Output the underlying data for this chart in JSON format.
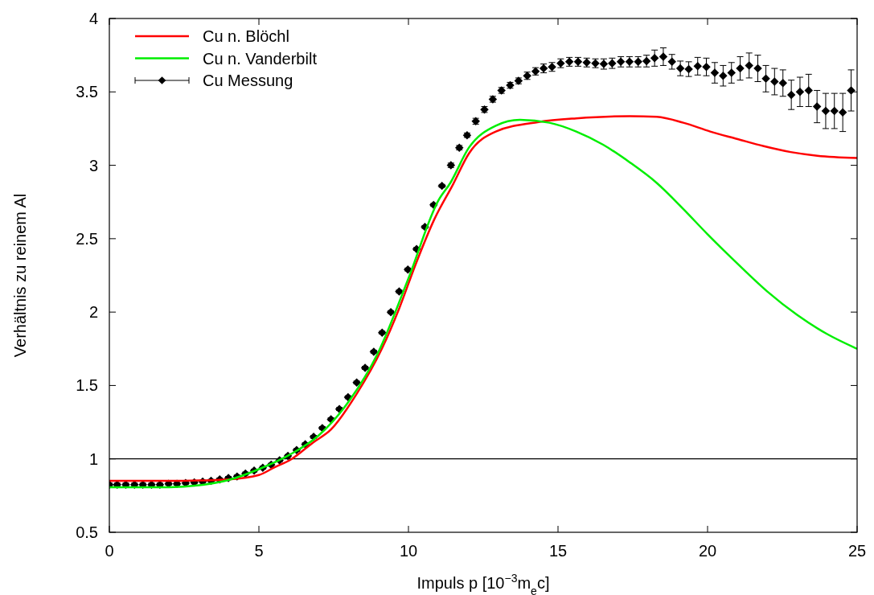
{
  "chart_data": {
    "type": "line",
    "xlabel": "Impuls p [10$^{−3}$m$_{e}$c]",
    "ylabel": "Verhältnis zu reinem Al",
    "xlim": [
      0,
      25
    ],
    "xticks": [
      0,
      5,
      10,
      15,
      20,
      25
    ],
    "ylim": [
      0.5,
      4
    ],
    "yticks": [
      0.5,
      1,
      1.5,
      2,
      2.5,
      3,
      3.5,
      4
    ],
    "grid": false,
    "legend": "top left",
    "ref_lines": [
      {
        "axis": "y",
        "value": 1,
        "color": "#000000"
      }
    ],
    "series": [
      {
        "name": "Cu n. Blöchl",
        "type": "line",
        "color": "#ff0000",
        "marker": "none",
        "x": [
          0,
          2,
          3,
          4,
          5,
          5.5,
          6.1,
          6.8,
          7.41,
          8.26,
          9.11,
          9.7,
          10.23,
          10.86,
          11.49,
          12.02,
          12.92,
          14.35,
          15.61,
          17.4,
          18.3,
          19.19,
          20.09,
          20.98,
          21.88,
          22.78,
          23.67,
          25
        ],
        "values": [
          0.85,
          0.85,
          0.853,
          0.86,
          0.89,
          0.94,
          1.0,
          1.11,
          1.2,
          1.44,
          1.75,
          2.03,
          2.32,
          2.63,
          2.87,
          3.08,
          3.23,
          3.295,
          3.32,
          3.335,
          3.33,
          3.29,
          3.23,
          3.18,
          3.13,
          3.09,
          3.065,
          3.05
        ]
      },
      {
        "name": "Cu n. Vanderbilt",
        "type": "line",
        "color": "#00ee00",
        "marker": "none",
        "x": [
          0,
          2,
          3,
          4,
          5,
          6,
          7,
          8,
          9,
          10,
          11,
          11.4,
          12.02,
          12.92,
          13.73,
          14.71,
          15.61,
          16.51,
          17.4,
          18.3,
          19.2,
          20,
          21,
          22,
          23,
          24,
          25
        ],
        "values": [
          0.807,
          0.807,
          0.82,
          0.857,
          0.93,
          1.025,
          1.16,
          1.39,
          1.73,
          2.23,
          2.76,
          2.88,
          3.12,
          3.27,
          3.31,
          3.29,
          3.23,
          3.14,
          3.02,
          2.88,
          2.7,
          2.53,
          2.33,
          2.14,
          1.98,
          1.85,
          1.75
        ]
      },
      {
        "name": "Cu Messung",
        "type": "scatter",
        "color": "#000000",
        "marker": "diamond",
        "x": [
          0,
          0.26,
          0.55,
          0.84,
          1.12,
          1.41,
          1.69,
          1.98,
          2.26,
          2.55,
          2.84,
          3.12,
          3.4,
          3.69,
          3.98,
          4.27,
          4.55,
          4.84,
          5.13,
          5.41,
          5.69,
          5.97,
          6.26,
          6.55,
          6.83,
          7.12,
          7.41,
          7.69,
          7.98,
          8.27,
          8.55,
          8.84,
          9.12,
          9.41,
          9.69,
          9.98,
          10.27,
          10.55,
          10.84,
          11.12,
          11.42,
          11.7,
          11.96,
          12.25,
          12.54,
          12.82,
          13.11,
          13.4,
          13.68,
          13.97,
          14.25,
          14.52,
          14.8,
          15.09,
          15.38,
          15.67,
          15.96,
          16.25,
          16.53,
          16.81,
          17.1,
          17.39,
          17.68,
          17.96,
          18.23,
          18.52,
          18.81,
          19.09,
          19.37,
          19.67,
          19.96,
          20.24,
          20.52,
          20.8,
          21.09,
          21.39,
          21.68,
          21.95,
          22.24,
          22.52,
          22.8,
          23.09,
          23.38,
          23.66,
          23.95,
          24.24,
          24.52,
          24.8
        ],
        "values": [
          0.825,
          0.825,
          0.825,
          0.825,
          0.825,
          0.825,
          0.825,
          0.83,
          0.83,
          0.835,
          0.84,
          0.845,
          0.85,
          0.86,
          0.87,
          0.88,
          0.9,
          0.92,
          0.94,
          0.96,
          0.99,
          1.02,
          1.06,
          1.1,
          1.15,
          1.21,
          1.27,
          1.34,
          1.42,
          1.52,
          1.62,
          1.73,
          1.86,
          2.0,
          2.14,
          2.29,
          2.43,
          2.58,
          2.73,
          2.86,
          3.0,
          3.12,
          3.205,
          3.3,
          3.38,
          3.45,
          3.51,
          3.545,
          3.575,
          3.61,
          3.64,
          3.66,
          3.67,
          3.695,
          3.705,
          3.705,
          3.7,
          3.695,
          3.69,
          3.695,
          3.705,
          3.705,
          3.705,
          3.71,
          3.73,
          3.74,
          3.705,
          3.66,
          3.655,
          3.675,
          3.67,
          3.63,
          3.61,
          3.63,
          3.66,
          3.68,
          3.66,
          3.59,
          3.57,
          3.56,
          3.48,
          3.5,
          3.51,
          3.4,
          3.37,
          3.37,
          3.36,
          3.51
        ],
        "errors": [
          0.01,
          0.01,
          0.01,
          0.01,
          0.01,
          0.01,
          0.01,
          0.01,
          0.01,
          0.01,
          0.01,
          0.01,
          0.01,
          0.01,
          0.01,
          0.01,
          0.01,
          0.01,
          0.01,
          0.01,
          0.01,
          0.01,
          0.01,
          0.01,
          0.01,
          0.01,
          0.01,
          0.01,
          0.01,
          0.01,
          0.01,
          0.01,
          0.01,
          0.01,
          0.01,
          0.01,
          0.01,
          0.01,
          0.01,
          0.01,
          0.015,
          0.015,
          0.015,
          0.02,
          0.02,
          0.02,
          0.02,
          0.02,
          0.02,
          0.025,
          0.025,
          0.03,
          0.03,
          0.03,
          0.03,
          0.03,
          0.03,
          0.03,
          0.035,
          0.035,
          0.035,
          0.035,
          0.035,
          0.04,
          0.055,
          0.06,
          0.05,
          0.05,
          0.05,
          0.06,
          0.06,
          0.07,
          0.07,
          0.07,
          0.08,
          0.085,
          0.09,
          0.09,
          0.09,
          0.09,
          0.1,
          0.1,
          0.11,
          0.11,
          0.12,
          0.12,
          0.13,
          0.14
        ]
      }
    ]
  }
}
